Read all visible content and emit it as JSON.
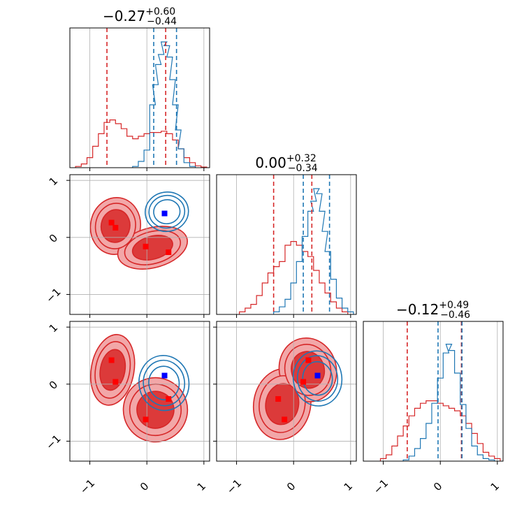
{
  "chart_data": {
    "type": "corner",
    "parameters": 3,
    "axis_range": [
      -1.35,
      1.1
    ],
    "ticks": [
      -1,
      0,
      1
    ],
    "tick_labels": [
      "−1",
      "0",
      "1"
    ],
    "grid": true,
    "colors": {
      "red": "#d62728",
      "blue": "#1f77b4",
      "red_fill_outer": "#f2a7a8",
      "red_fill_inner": "#dc3a3a",
      "grid": "#b0b0b0"
    },
    "titles": [
      {
        "value": "−0.27",
        "plus": "+0.60",
        "minus": "−0.44"
      },
      {
        "value": "0.00",
        "plus": "+0.32",
        "minus": "−0.34"
      },
      {
        "value": "−0.12",
        "plus": "+0.49",
        "minus": "−0.46"
      }
    ],
    "quantiles": {
      "red": [
        [
          -0.7,
          0.33
        ],
        [
          -0.35,
          0.32
        ],
        [
          -0.58,
          0.37
        ]
      ],
      "blue": [
        [
          0.12,
          0.52
        ],
        [
          0.17,
          0.63
        ],
        [
          -0.04,
          0.38
        ]
      ]
    },
    "marginals": {
      "red": [
        {
          "x": [
            -1.2,
            -1.1,
            -1.0,
            -0.9,
            -0.8,
            -0.7,
            -0.6,
            -0.5,
            -0.4,
            -0.3,
            -0.2,
            -0.1,
            0.0,
            0.1,
            0.2,
            0.3,
            0.4,
            0.5,
            0.6,
            0.7,
            0.8,
            0.9,
            1.0
          ],
          "y": [
            0.01,
            0.03,
            0.08,
            0.17,
            0.27,
            0.36,
            0.38,
            0.35,
            0.31,
            0.25,
            0.23,
            0.25,
            0.27,
            0.28,
            0.28,
            0.29,
            0.27,
            0.22,
            0.15,
            0.08,
            0.04,
            0.015,
            0.005
          ]
        },
        {
          "x": [
            -0.9,
            -0.8,
            -0.7,
            -0.6,
            -0.5,
            -0.4,
            -0.3,
            -0.2,
            -0.1,
            0.0,
            0.1,
            0.2,
            0.3,
            0.4,
            0.5,
            0.6,
            0.7,
            0.8,
            0.9
          ],
          "y": [
            0.02,
            0.05,
            0.08,
            0.15,
            0.25,
            0.33,
            0.38,
            0.42,
            0.55,
            0.58,
            0.55,
            0.5,
            0.46,
            0.35,
            0.25,
            0.17,
            0.1,
            0.05,
            0.02
          ]
        },
        {
          "x": [
            -1.0,
            -0.9,
            -0.8,
            -0.7,
            -0.6,
            -0.5,
            -0.4,
            -0.3,
            -0.2,
            -0.1,
            0.0,
            0.1,
            0.2,
            0.3,
            0.4,
            0.5,
            0.6,
            0.7,
            0.8,
            0.9,
            1.0
          ],
          "y": [
            0.02,
            0.05,
            0.12,
            0.2,
            0.28,
            0.36,
            0.42,
            0.46,
            0.48,
            0.48,
            0.46,
            0.44,
            0.42,
            0.4,
            0.36,
            0.3,
            0.22,
            0.14,
            0.07,
            0.04,
            0.02
          ]
        }
      ],
      "blue": [
        {
          "x": [
            -0.2,
            -0.1,
            0.0,
            0.1,
            0.15,
            0.2,
            0.25,
            0.3,
            0.35,
            0.4,
            0.45,
            0.5,
            0.55,
            0.6,
            0.7,
            0.8
          ],
          "y": [
            0.01,
            0.05,
            0.14,
            0.5,
            0.66,
            0.82,
            0.9,
            1.0,
            0.97,
            0.88,
            0.7,
            0.5,
            0.3,
            0.15,
            0.04,
            0.01
          ]
        },
        {
          "x": [
            -0.3,
            -0.2,
            -0.1,
            0.0,
            0.1,
            0.2,
            0.3,
            0.35,
            0.4,
            0.45,
            0.5,
            0.55,
            0.6,
            0.7,
            0.8,
            0.9,
            1.0
          ],
          "y": [
            0.02,
            0.06,
            0.12,
            0.25,
            0.42,
            0.62,
            0.82,
            0.9,
            1.0,
            0.96,
            0.82,
            0.66,
            0.5,
            0.28,
            0.13,
            0.05,
            0.02
          ]
        },
        {
          "x": [
            -0.6,
            -0.5,
            -0.4,
            -0.3,
            -0.2,
            -0.1,
            0.0,
            0.1,
            0.15,
            0.2,
            0.3,
            0.4,
            0.5,
            0.6,
            0.7,
            0.8,
            0.9
          ],
          "y": [
            0.01,
            0.04,
            0.1,
            0.18,
            0.3,
            0.46,
            0.66,
            0.86,
            0.93,
            0.88,
            0.7,
            0.45,
            0.26,
            0.12,
            0.05,
            0.02,
            0.01
          ]
        }
      ]
    },
    "markers": {
      "red": [
        {
          "panel": "1-0",
          "points": [
            [
              -0.62,
              0.26
            ],
            [
              -0.55,
              0.17
            ],
            [
              -0.02,
              -0.16
            ],
            [
              0.38,
              -0.26
            ]
          ]
        },
        {
          "panel": "2-0",
          "points": [
            [
              -0.62,
              0.42
            ],
            [
              -0.55,
              0.04
            ],
            [
              -0.02,
              -0.62
            ],
            [
              0.38,
              -0.26
            ]
          ]
        },
        {
          "panel": "2-1",
          "points": [
            [
              -0.27,
              -0.26
            ],
            [
              -0.16,
              -0.62
            ],
            [
              0.17,
              0.04
            ],
            [
              0.26,
              0.42
            ]
          ]
        }
      ],
      "blue": [
        {
          "panel": "1-0",
          "points": [
            [
              0.31,
              0.42
            ]
          ]
        },
        {
          "panel": "2-0",
          "points": [
            [
              0.31,
              0.15
            ]
          ]
        },
        {
          "panel": "2-1",
          "points": [
            [
              0.42,
              0.15
            ]
          ]
        }
      ]
    },
    "contours": {
      "red_blobs": [
        {
          "panel": "1-0",
          "cx": [
            -0.55,
            0.1
          ],
          "cy": [
            0.2,
            -0.18
          ],
          "rx": [
            0.35,
            0.5
          ],
          "ry": [
            0.4,
            0.28
          ]
        },
        {
          "panel": "2-0",
          "cx": [
            -0.6,
            0.15
          ],
          "cy": [
            0.25,
            -0.45
          ],
          "rx": [
            0.3,
            0.45
          ],
          "ry": [
            0.5,
            0.45
          ]
        },
        {
          "panel": "2-1",
          "cx": [
            -0.2,
            0.25
          ],
          "cy": [
            -0.35,
            0.25
          ],
          "rx": [
            0.4,
            0.4
          ],
          "ry": [
            0.5,
            0.45
          ]
        }
      ],
      "blue_blobs": [
        {
          "panel": "1-0",
          "cx": 0.35,
          "cy": 0.45,
          "rx": 0.33,
          "ry": 0.3
        },
        {
          "panel": "2-0",
          "cx": 0.3,
          "cy": 0.02,
          "rx": 0.38,
          "ry": 0.42
        },
        {
          "panel": "2-1",
          "cx": 0.42,
          "cy": 0.1,
          "rx": 0.37,
          "ry": 0.42
        }
      ]
    }
  }
}
